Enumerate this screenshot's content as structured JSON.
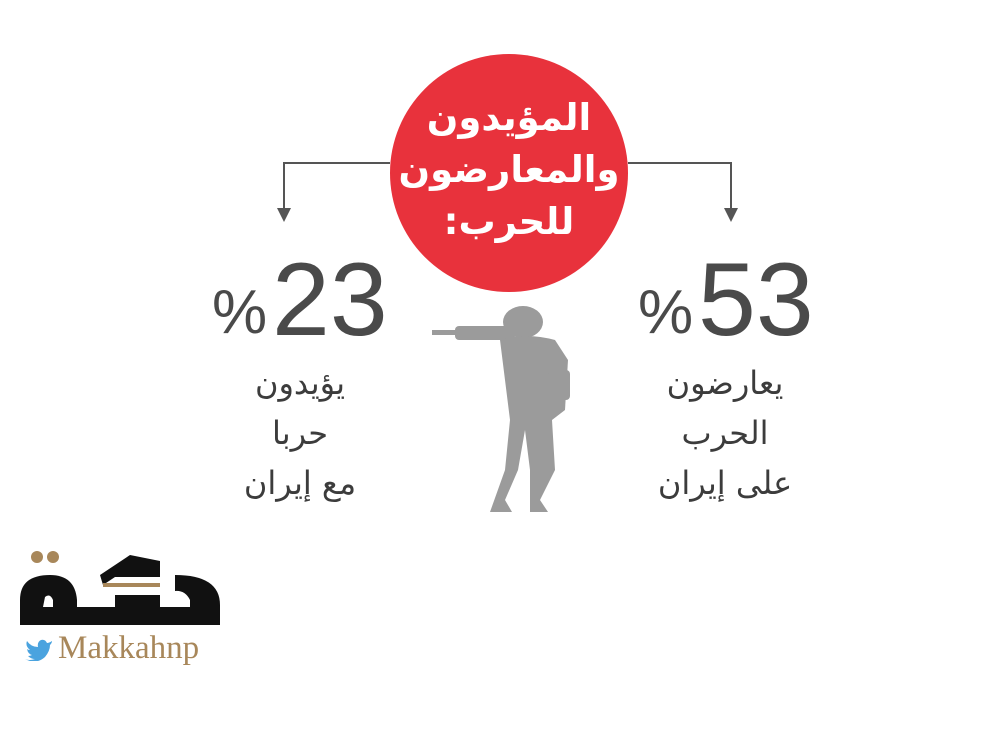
{
  "title": {
    "lines": [
      "المؤيدون",
      "والمعارضون",
      "للحرب:"
    ]
  },
  "left_stat": {
    "value": "23",
    "unit": "%",
    "lines": [
      "يؤيدون",
      "حربا",
      "مع إيران"
    ]
  },
  "right_stat": {
    "value": "53",
    "unit": "%",
    "lines": [
      "يعارضون",
      "الحرب",
      "على إيران"
    ]
  },
  "logo": {
    "text": "مكة",
    "handle": "Makkahnp"
  },
  "colors": {
    "accent": "#e8323c",
    "text": "#4a4a4a",
    "silhouette": "#9b9b9b",
    "logo_gold": "#a8875a"
  }
}
